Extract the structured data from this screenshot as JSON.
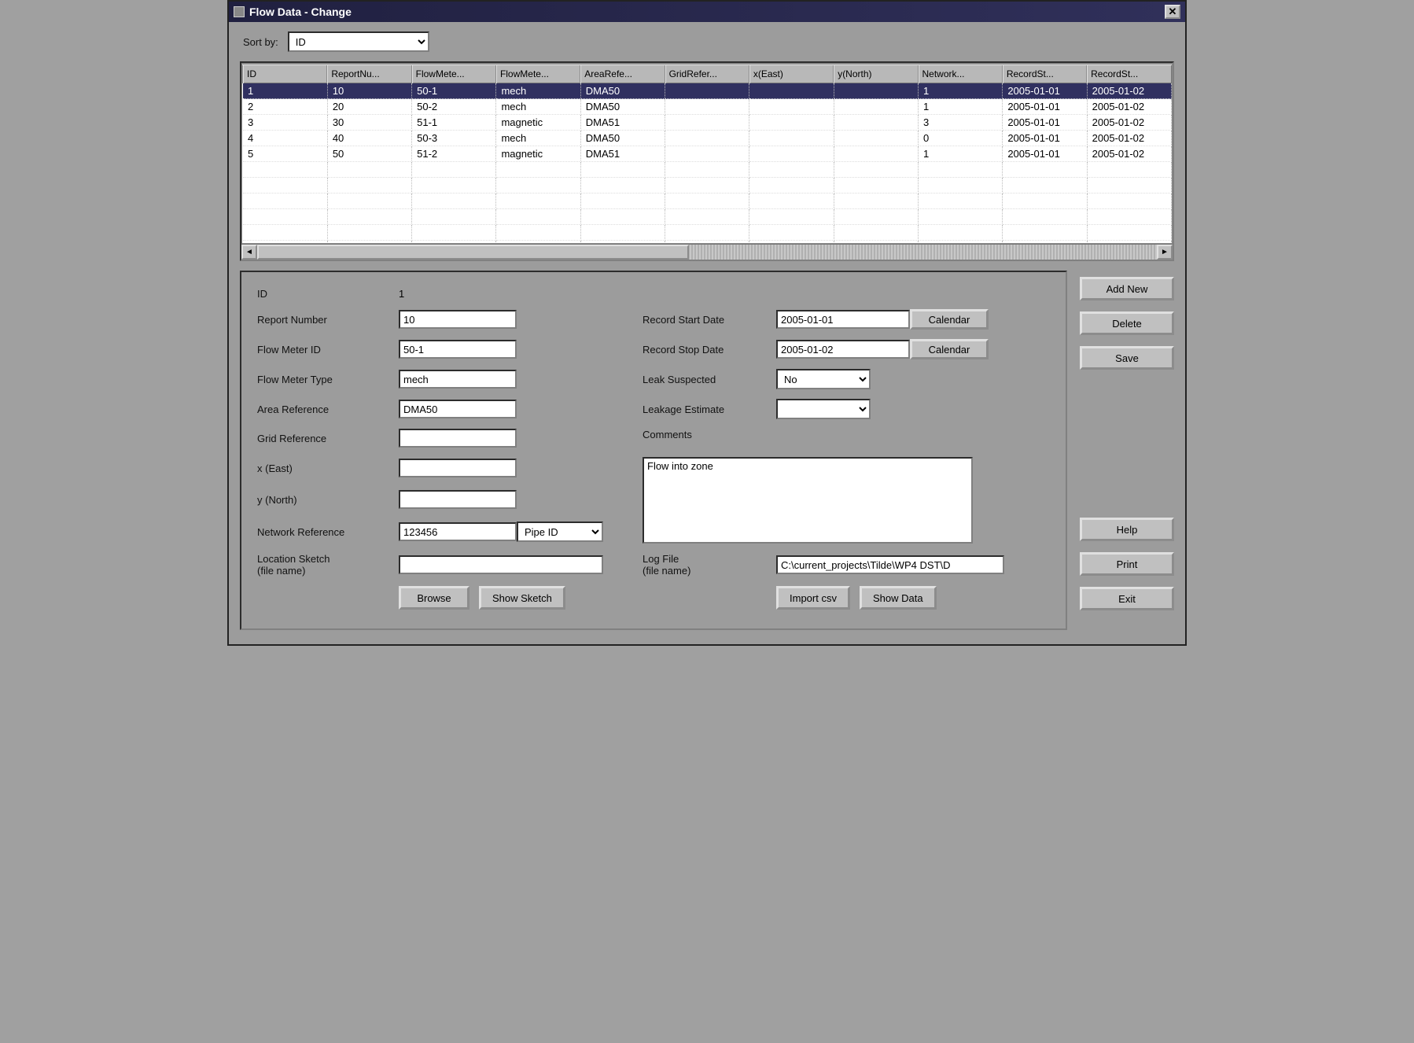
{
  "window": {
    "title": "Flow Data - Change"
  },
  "sort": {
    "label": "Sort by:",
    "value": "ID"
  },
  "grid": {
    "columns": [
      "ID",
      "ReportNu...",
      "FlowMete...",
      "FlowMete...",
      "AreaRefe...",
      "GridRefer...",
      "x(East)",
      "y(North)",
      "Network...",
      "RecordSt...",
      "RecordSt..."
    ],
    "rows": [
      {
        "id": "1",
        "report": "10",
        "meter": "50-1",
        "type": "mech",
        "area": "DMA50",
        "grid": "",
        "x": "",
        "y": "",
        "net": "1",
        "start": "2005-01-01",
        "stop": "2005-01-02",
        "selected": true
      },
      {
        "id": "2",
        "report": "20",
        "meter": "50-2",
        "type": "mech",
        "area": "DMA50",
        "grid": "",
        "x": "",
        "y": "",
        "net": "1",
        "start": "2005-01-01",
        "stop": "2005-01-02"
      },
      {
        "id": "3",
        "report": "30",
        "meter": "51-1",
        "type": "magnetic",
        "area": "DMA51",
        "grid": "",
        "x": "",
        "y": "",
        "net": "3",
        "start": "2005-01-01",
        "stop": "2005-01-02"
      },
      {
        "id": "4",
        "report": "40",
        "meter": "50-3",
        "type": "mech",
        "area": "DMA50",
        "grid": "",
        "x": "",
        "y": "",
        "net": "0",
        "start": "2005-01-01",
        "stop": "2005-01-02"
      },
      {
        "id": "5",
        "report": "50",
        "meter": "51-2",
        "type": "magnetic",
        "area": "DMA51",
        "grid": "",
        "x": "",
        "y": "",
        "net": "1",
        "start": "2005-01-01",
        "stop": "2005-01-02"
      }
    ]
  },
  "form": {
    "id_label": "ID",
    "id_value": "1",
    "report_label": "Report Number",
    "report_value": "10",
    "meter_label": "Flow Meter ID",
    "meter_value": "50-1",
    "type_label": "Flow Meter Type",
    "type_value": "mech",
    "area_label": "Area Reference",
    "area_value": "DMA50",
    "gridref_label": "Grid Reference",
    "gridref_value": "",
    "x_label": "x (East)",
    "x_value": "",
    "y_label": "y (North)",
    "y_value": "",
    "netref_label": "Network Reference",
    "netref_value": "123456",
    "netref_type": "Pipe ID",
    "loc_label": "Location Sketch\n(file name)",
    "loc_value": "",
    "browse_label": "Browse",
    "showsketch_label": "Show Sketch",
    "startdate_label": "Record Start Date",
    "startdate_value": "2005-01-01",
    "stopdate_label": "Record Stop Date",
    "stopdate_value": "2005-01-02",
    "calendar_label": "Calendar",
    "leak_label": "Leak Suspected",
    "leak_value": "No",
    "leakest_label": "Leakage Estimate",
    "leakest_value": "",
    "comments_label": "Comments",
    "comments_value": "Flow into zone",
    "logfile_label": "Log File\n(file name)",
    "logfile_value": "C:\\current_projects\\Tilde\\WP4 DST\\D",
    "importcsv_label": "Import csv",
    "showdata_label": "Show Data"
  },
  "buttons": {
    "addnew": "Add New",
    "delete": "Delete",
    "save": "Save",
    "help": "Help",
    "print": "Print",
    "exit": "Exit"
  }
}
